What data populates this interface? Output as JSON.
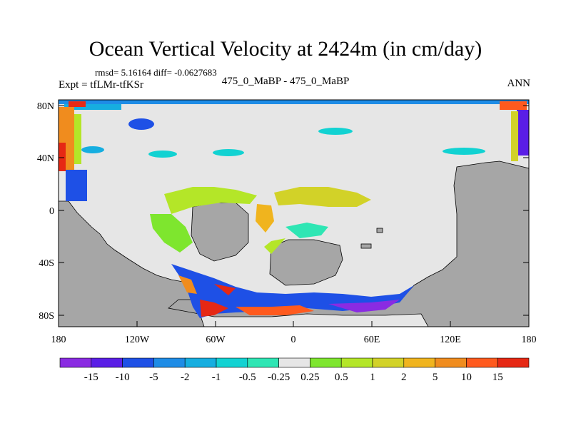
{
  "title": "Ocean Vertical Velocity at 2424m (in cm/day)",
  "stats_text": "rmsd= 5.16164  diff= -0.0627683",
  "experiment": "Expt = tfLMr-tfKSr",
  "subtitle": "475_0_MaBP - 475_0_MaBP",
  "season": "ANN",
  "map": {
    "lon_ticks": [
      "180",
      "120W",
      "60W",
      "0",
      "60E",
      "120E",
      "180"
    ],
    "lat_ticks": [
      "80N",
      "40N",
      "0",
      "40S",
      "80S"
    ],
    "land_color": "#a6a6a6",
    "zero_color": "#e6e6e6"
  },
  "colorbar": {
    "labels": [
      "-15",
      "-10",
      "-5",
      "-2",
      "-1",
      "-0.5",
      "-0.25",
      "0.25",
      "0.5",
      "1",
      "2",
      "5",
      "10",
      "15"
    ],
    "colors": [
      "#8a2be2",
      "#5a1ee6",
      "#1e50e6",
      "#1e8ce6",
      "#16aee0",
      "#12d2d2",
      "#2ee6b4",
      "#e6e6e6",
      "#7ee62e",
      "#b4e628",
      "#d2d228",
      "#f0b41e",
      "#f08c1e",
      "#ff5a1e",
      "#e62814"
    ]
  }
}
